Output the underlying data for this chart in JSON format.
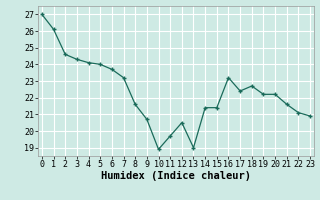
{
  "x": [
    0,
    1,
    2,
    3,
    4,
    5,
    6,
    7,
    8,
    9,
    10,
    11,
    12,
    13,
    14,
    15,
    16,
    17,
    18,
    19,
    20,
    21,
    22,
    23
  ],
  "y": [
    27.0,
    26.1,
    24.6,
    24.3,
    24.1,
    24.0,
    23.7,
    23.2,
    21.6,
    20.7,
    18.9,
    19.7,
    20.5,
    19.0,
    21.4,
    21.4,
    23.2,
    22.4,
    22.7,
    22.2,
    22.2,
    21.6,
    21.1,
    20.9
  ],
  "line_color": "#1a6b5a",
  "marker": "+",
  "marker_size": 3.5,
  "linewidth": 0.9,
  "markeredgewidth": 1.0,
  "bg_color": "#ceeae4",
  "grid_color": "#ffffff",
  "xlabel": "Humidex (Indice chaleur)",
  "xlabel_fontsize": 7.5,
  "tick_fontsize": 6.0,
  "ylim": [
    18.5,
    27.5
  ],
  "yticks": [
    19,
    20,
    21,
    22,
    23,
    24,
    25,
    26,
    27
  ],
  "xticks": [
    0,
    1,
    2,
    3,
    4,
    5,
    6,
    7,
    8,
    9,
    10,
    11,
    12,
    13,
    14,
    15,
    16,
    17,
    18,
    19,
    20,
    21,
    22,
    23
  ],
  "xlim": [
    -0.3,
    23.3
  ]
}
